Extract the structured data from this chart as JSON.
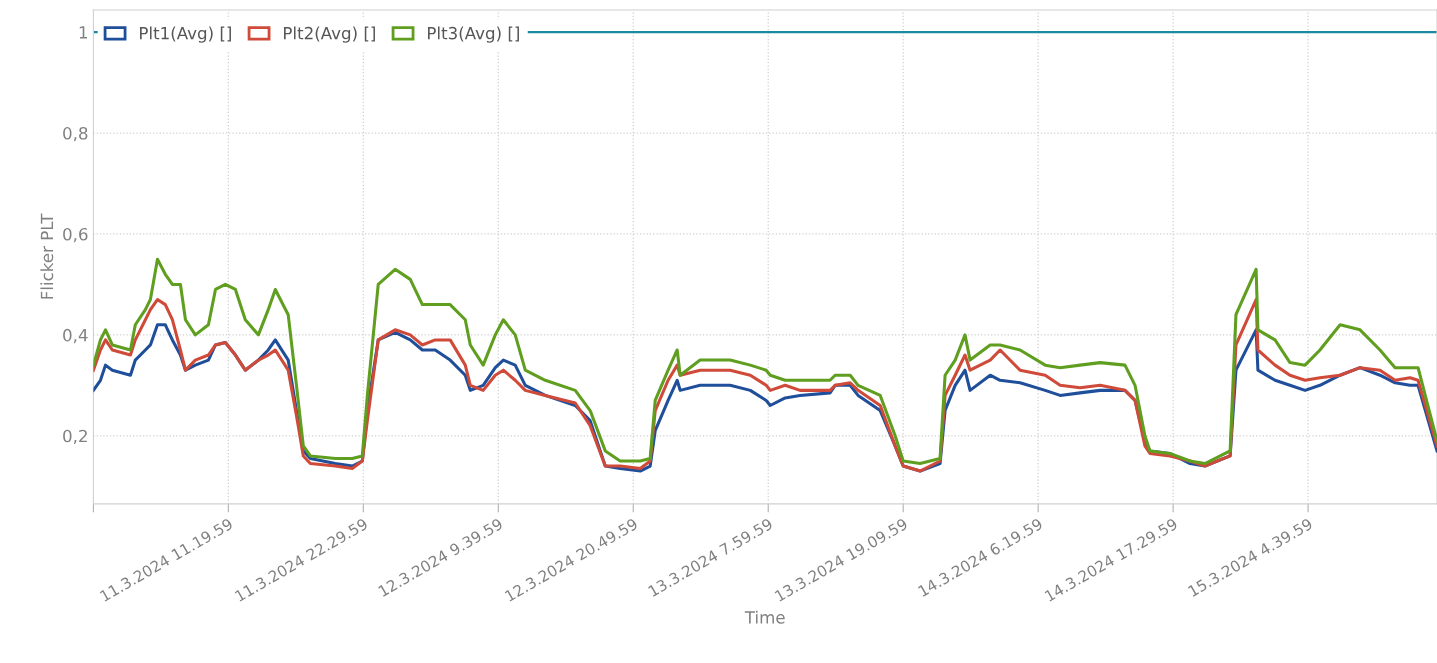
{
  "chart_data": {
    "type": "line",
    "xlabel": "Time",
    "ylabel": "Flicker PLT",
    "x": [
      "2024-03-11T00:10",
      "2024-03-11T00:45",
      "2024-03-11T01:10",
      "2024-03-11T01:44",
      "2024-03-11T03:14",
      "2024-03-11T03:38",
      "2024-03-11T04:28",
      "2024-03-11T04:53",
      "2024-03-11T05:28",
      "2024-03-11T06:07",
      "2024-03-11T06:42",
      "2024-03-11T07:22",
      "2024-03-11T07:47",
      "2024-03-11T08:36",
      "2024-03-11T09:41",
      "2024-03-11T10:16",
      "2024-03-11T11:05",
      "2024-03-11T11:55",
      "2024-03-11T12:44",
      "2024-03-11T13:49",
      "2024-03-11T14:38",
      "2024-03-11T15:13",
      "2024-03-11T16:17",
      "2024-03-11T16:58",
      "2024-03-11T17:32",
      "2024-03-11T18:07",
      "2024-03-11T20:11",
      "2024-03-11T21:35",
      "2024-03-11T22:25",
      "2024-03-11T22:50",
      "2024-03-11T23:44",
      "2024-03-12T01:08",
      "2024-03-12T02:23",
      "2024-03-12T03:23",
      "2024-03-12T04:27",
      "2024-03-12T05:41",
      "2024-03-12T06:56",
      "2024-03-12T07:21",
      "2024-03-12T08:25",
      "2024-03-12T09:25",
      "2024-03-12T10:05",
      "2024-03-12T11:04",
      "2024-03-12T11:54",
      "2024-03-12T13:33",
      "2024-03-12T16:02",
      "2024-03-12T17:16",
      "2024-03-12T18:31",
      "2024-03-12T19:45",
      "2024-03-12T21:25",
      "2024-03-12T22:14",
      "2024-03-12T22:39",
      "2024-03-12T23:43",
      "2024-03-13T00:28",
      "2024-03-13T00:43",
      "2024-03-13T02:22",
      "2024-03-13T04:51",
      "2024-03-13T06:31",
      "2024-03-13T07:50",
      "2024-03-13T08:10",
      "2024-03-13T09:24",
      "2024-03-13T10:38",
      "2024-03-13T13:07",
      "2024-03-13T13:32",
      "2024-03-13T14:47",
      "2024-03-13T15:26",
      "2024-03-13T17:16",
      "2024-03-13T18:30",
      "2024-03-13T19:10",
      "2024-03-13T20:34",
      "2024-03-13T22:13",
      "2024-03-13T22:38",
      "2024-03-13T23:28",
      "2024-03-14T00:17",
      "2024-03-14T00:42",
      "2024-03-14T02:22",
      "2024-03-14T03:11",
      "2024-03-14T04:50",
      "2024-03-14T06:55",
      "2024-03-14T08:09",
      "2024-03-14T09:48",
      "2024-03-14T11:28",
      "2024-03-14T13:31",
      "2024-03-14T14:21",
      "2024-03-14T15:10",
      "2024-03-14T15:35",
      "2024-03-14T17:14",
      "2024-03-14T18:54",
      "2024-03-14T20:08",
      "2024-03-14T22:13",
      "2024-03-14T22:42",
      "2024-03-15T00:22",
      "2024-03-15T00:31",
      "2024-03-15T01:56",
      "2024-03-15T03:10",
      "2024-03-15T04:25",
      "2024-03-15T05:39",
      "2024-03-15T07:19",
      "2024-03-15T08:58",
      "2024-03-15T10:37",
      "2024-03-15T11:52",
      "2024-03-15T13:06",
      "2024-03-15T13:46",
      "2024-03-15T15:20"
    ],
    "series": [
      {
        "name": "Plt1(Avg) []",
        "color": "#1f4e9a",
        "values": [
          0.29,
          0.31,
          0.34,
          0.33,
          0.32,
          0.35,
          0.37,
          0.38,
          0.42,
          0.42,
          0.39,
          0.36,
          0.33,
          0.34,
          0.35,
          0.38,
          0.385,
          0.36,
          0.33,
          0.35,
          0.37,
          0.39,
          0.35,
          0.25,
          0.17,
          0.155,
          0.145,
          0.14,
          0.15,
          0.25,
          0.39,
          0.405,
          0.39,
          0.37,
          0.37,
          0.35,
          0.32,
          0.29,
          0.3,
          0.335,
          0.35,
          0.34,
          0.3,
          0.28,
          0.26,
          0.23,
          0.14,
          0.135,
          0.13,
          0.14,
          0.21,
          0.27,
          0.31,
          0.29,
          0.3,
          0.3,
          0.29,
          0.27,
          0.26,
          0.275,
          0.28,
          0.285,
          0.3,
          0.3,
          0.28,
          0.25,
          0.18,
          0.14,
          0.13,
          0.145,
          0.25,
          0.3,
          0.33,
          0.29,
          0.32,
          0.31,
          0.305,
          0.29,
          0.28,
          0.285,
          0.29,
          0.29,
          0.27,
          0.19,
          0.17,
          0.165,
          0.145,
          0.14,
          0.16,
          0.33,
          0.41,
          0.33,
          0.31,
          0.3,
          0.29,
          0.3,
          0.32,
          0.335,
          0.32,
          0.305,
          0.3,
          0.3,
          0.17
        ]
      },
      {
        "name": "Plt2(Avg) []",
        "color": "#d04a3a",
        "values": [
          0.33,
          0.37,
          0.39,
          0.37,
          0.36,
          0.39,
          0.43,
          0.45,
          0.47,
          0.46,
          0.43,
          0.37,
          0.33,
          0.35,
          0.36,
          0.38,
          0.385,
          0.36,
          0.33,
          0.35,
          0.36,
          0.37,
          0.33,
          0.24,
          0.16,
          0.145,
          0.14,
          0.135,
          0.15,
          0.23,
          0.39,
          0.41,
          0.4,
          0.38,
          0.39,
          0.39,
          0.34,
          0.3,
          0.29,
          0.32,
          0.33,
          0.31,
          0.29,
          0.28,
          0.265,
          0.22,
          0.14,
          0.14,
          0.135,
          0.15,
          0.25,
          0.31,
          0.34,
          0.32,
          0.33,
          0.33,
          0.32,
          0.3,
          0.29,
          0.3,
          0.29,
          0.29,
          0.3,
          0.305,
          0.29,
          0.26,
          0.18,
          0.14,
          0.13,
          0.15,
          0.28,
          0.32,
          0.36,
          0.33,
          0.35,
          0.37,
          0.33,
          0.32,
          0.3,
          0.295,
          0.3,
          0.29,
          0.27,
          0.18,
          0.165,
          0.16,
          0.15,
          0.14,
          0.16,
          0.38,
          0.47,
          0.37,
          0.34,
          0.32,
          0.31,
          0.315,
          0.32,
          0.335,
          0.33,
          0.31,
          0.315,
          0.31,
          0.18
        ]
      },
      {
        "name": "Plt3(Avg) []",
        "color": "#5f9e1f",
        "values": [
          0.34,
          0.39,
          0.41,
          0.38,
          0.37,
          0.42,
          0.45,
          0.47,
          0.55,
          0.52,
          0.5,
          0.5,
          0.43,
          0.4,
          0.42,
          0.49,
          0.5,
          0.49,
          0.43,
          0.4,
          0.45,
          0.49,
          0.44,
          0.3,
          0.18,
          0.16,
          0.155,
          0.155,
          0.16,
          0.28,
          0.5,
          0.53,
          0.51,
          0.46,
          0.46,
          0.46,
          0.43,
          0.38,
          0.34,
          0.4,
          0.43,
          0.4,
          0.33,
          0.31,
          0.29,
          0.25,
          0.17,
          0.15,
          0.15,
          0.155,
          0.27,
          0.33,
          0.37,
          0.32,
          0.35,
          0.35,
          0.34,
          0.33,
          0.32,
          0.31,
          0.31,
          0.31,
          0.32,
          0.32,
          0.3,
          0.28,
          0.2,
          0.15,
          0.145,
          0.155,
          0.32,
          0.35,
          0.4,
          0.35,
          0.38,
          0.38,
          0.37,
          0.34,
          0.335,
          0.34,
          0.345,
          0.34,
          0.3,
          0.2,
          0.17,
          0.165,
          0.15,
          0.145,
          0.17,
          0.44,
          0.53,
          0.41,
          0.39,
          0.345,
          0.34,
          0.37,
          0.42,
          0.41,
          0.37,
          0.335,
          0.335,
          0.335,
          0.19
        ]
      }
    ],
    "xlim": [
      "2024-03-11T00:10",
      "2024-03-15T15:20"
    ],
    "xticks": [
      {
        "value": "2024-03-11T00:10",
        "label": null
      },
      {
        "value": "2024-03-11T11:20",
        "label": "11.3.2024 11.19.59"
      },
      {
        "value": "2024-03-11T22:30",
        "label": "11.3.2024 22.29.59"
      },
      {
        "value": "2024-03-12T09:40",
        "label": "12.3.2024 9.39.59"
      },
      {
        "value": "2024-03-12T20:50",
        "label": "12.3.2024 20.49.59"
      },
      {
        "value": "2024-03-13T08:00",
        "label": "13.3.2024 7.59.59"
      },
      {
        "value": "2024-03-13T19:10",
        "label": "13.3.2024 19.09.59"
      },
      {
        "value": "2024-03-14T06:20",
        "label": "14.3.2024 6.19.59"
      },
      {
        "value": "2024-03-14T17:30",
        "label": "14.3.2024 17.29.59"
      },
      {
        "value": "2024-03-15T04:40",
        "label": "15.3.2024 4.39.59"
      }
    ],
    "ylim": [
      0.065,
      1.044
    ],
    "yticks": [
      {
        "value": 0.2,
        "label": "0,2"
      },
      {
        "value": 0.4,
        "label": "0,4"
      },
      {
        "value": 0.6,
        "label": "0,6"
      },
      {
        "value": 0.8,
        "label": "0,8"
      },
      1
    ],
    "ref_lines": [
      {
        "axis": "y",
        "value": 1,
        "color": "#1a8aa0",
        "line_style": "solid"
      }
    ],
    "grid": true,
    "legend": "top left",
    "marker": "none",
    "line_style": "solid"
  }
}
